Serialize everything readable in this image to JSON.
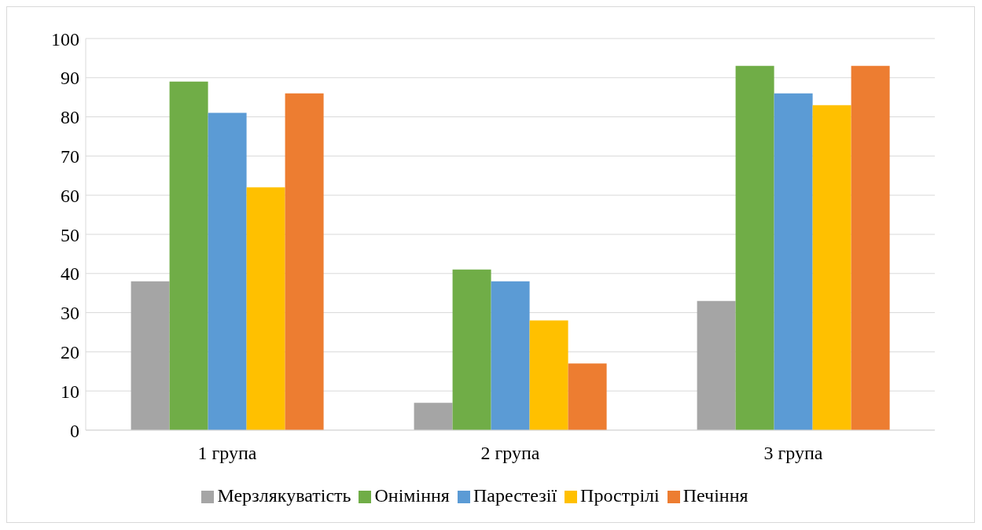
{
  "chart_data": {
    "type": "bar",
    "categories": [
      "1 група",
      "2 група",
      "3 група"
    ],
    "series": [
      {
        "name": "Мерзлякуватість",
        "color": "#a5a5a5",
        "values": [
          38,
          7,
          33
        ]
      },
      {
        "name": "Оніміння",
        "color": "#70ad47",
        "values": [
          89,
          41,
          93
        ]
      },
      {
        "name": "Парестезії",
        "color": "#5b9bd5",
        "values": [
          81,
          38,
          86
        ]
      },
      {
        "name": "Прострілі",
        "color": "#ffc000",
        "values": [
          62,
          28,
          83
        ]
      },
      {
        "name": "Печіння",
        "color": "#ed7d31",
        "values": [
          86,
          17,
          93
        ]
      }
    ],
    "ylim": [
      0,
      100
    ],
    "yticks": [
      0,
      10,
      20,
      30,
      40,
      50,
      60,
      70,
      80,
      90,
      100
    ],
    "grid": "y",
    "legend": "bottom"
  }
}
